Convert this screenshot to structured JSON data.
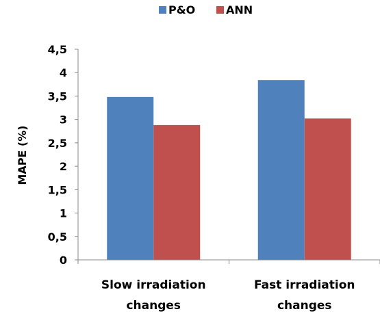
{
  "chart_data": {
    "type": "bar",
    "categories": [
      [
        "Slow irradiation",
        "changes"
      ],
      [
        "Fast irradiation",
        "changes"
      ]
    ],
    "series": [
      {
        "name": "P&O",
        "color": "#4f81bd",
        "values": [
          3.48,
          3.84
        ]
      },
      {
        "name": "ANN",
        "color": "#c0504d",
        "values": [
          2.88,
          3.02
        ]
      }
    ],
    "ylabel": "MAPE (%)",
    "ylim": [
      0,
      4.5
    ],
    "yticks": [
      "0",
      "0,5",
      "1",
      "1,5",
      "2",
      "2,5",
      "3",
      "3,5",
      "4",
      "4,5"
    ],
    "grid": false,
    "legend_position": "top"
  }
}
